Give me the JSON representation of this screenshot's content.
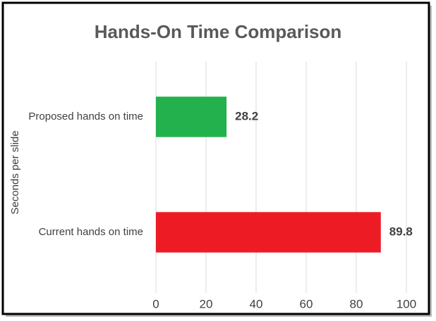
{
  "chart_data": {
    "type": "hbar",
    "title": "Hands-On Time Comparison",
    "y_label": "Seconds per slide",
    "categories": [
      "Proposed hands on time",
      "Current hands on time"
    ],
    "values": [
      28.2,
      89.8
    ],
    "colors": [
      "#22b14c",
      "#ed1c24"
    ],
    "xlim": [
      0,
      100
    ],
    "xticks": [
      0,
      20,
      40,
      60,
      80,
      100
    ],
    "grid": true
  }
}
